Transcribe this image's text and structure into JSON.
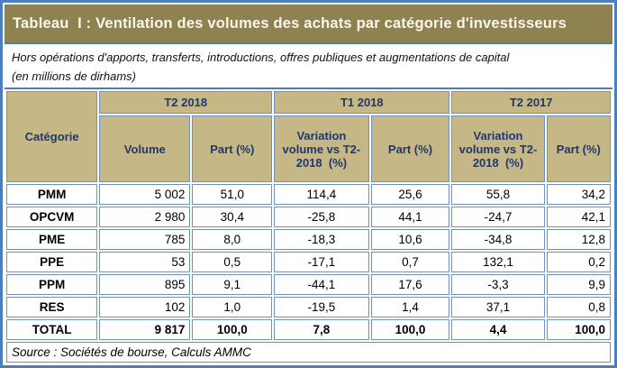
{
  "title": "Tableau  I : Ventilation des volumes des achats par catégorie d'investisseurs",
  "subtitle": {
    "line1": "Hors opérations d'apports, transferts, introductions, offres publiques et augmentations de capital",
    "line2": "(en millions de dirhams)"
  },
  "source_note": "Source : Sociétés de bourse, Calculs AMMC",
  "colors": {
    "title_bar_bg": "#8f8251",
    "title_text": "#faf7ec",
    "header_bg": "#c6b787",
    "header_text": "#21386b",
    "border_blue": "#6a92c5",
    "frame_blue": "#4d7ebc",
    "data_text": "#000000"
  },
  "table": {
    "corner_header": "Catégorie",
    "groups": [
      {
        "label": "T2 2018"
      },
      {
        "label": "T1 2018"
      },
      {
        "label": "T2 2017"
      }
    ],
    "sub_headers": {
      "volume": "Volume",
      "part_t2_2018": "Part (%)",
      "variation_t1_2018": "Variation volume vs T2-2018  (%)",
      "part_t1_2018": "Part (%)",
      "variation_t2_2017": "Variation volume vs T2-2018  (%)",
      "part_t2_2017": "Part (%)"
    },
    "rows": [
      {
        "category": "PMM",
        "values": [
          "5 002",
          "51,0",
          "114,4",
          "25,6",
          "55,8",
          "34,2"
        ]
      },
      {
        "category": "OPCVM",
        "values": [
          "2 980",
          "30,4",
          "-25,8",
          "44,1",
          "-24,7",
          "42,1"
        ]
      },
      {
        "category": "PME",
        "values": [
          "785",
          "8,0",
          "-18,3",
          "10,6",
          "-34,8",
          "12,8"
        ]
      },
      {
        "category": "PPE",
        "values": [
          "53",
          "0,5",
          "-17,1",
          "0,7",
          "132,1",
          "0,2"
        ]
      },
      {
        "category": "PPM",
        "values": [
          "895",
          "9,1",
          "-44,1",
          "17,6",
          "-3,3",
          "9,9"
        ]
      },
      {
        "category": "RES",
        "values": [
          "102",
          "1,0",
          "-19,5",
          "1,4",
          "37,1",
          "0,8"
        ]
      },
      {
        "category": "TOTAL",
        "values": [
          "9 817",
          "100,0",
          "7,8",
          "100,0",
          "4,4",
          "100,0"
        ]
      }
    ]
  }
}
